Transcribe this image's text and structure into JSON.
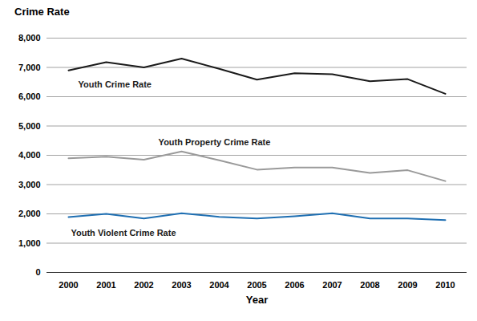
{
  "chart_data": {
    "type": "line",
    "title": "Crime Rate",
    "x_label": "Year",
    "categories": [
      "2000",
      "2001",
      "2002",
      "2003",
      "2004",
      "2005",
      "2006",
      "2007",
      "2008",
      "2009",
      "2010"
    ],
    "series": [
      {
        "name": "Youth Crime Rate",
        "color": "#1a1a1a",
        "values": [
          6900,
          7180,
          7000,
          7300,
          6950,
          6580,
          6800,
          6770,
          6530,
          6600,
          6100
        ]
      },
      {
        "name": "Youth Property Crime Rate",
        "color": "#9a9a9a",
        "values": [
          3900,
          3950,
          3850,
          4130,
          3830,
          3510,
          3580,
          3580,
          3400,
          3490,
          3120
        ]
      },
      {
        "name": "Youth Violent Crime Rate",
        "color": "#1f6fb2",
        "values": [
          1890,
          2000,
          1840,
          2020,
          1900,
          1840,
          1920,
          2020,
          1840,
          1840,
          1790
        ]
      }
    ],
    "ylim": [
      0,
      8000
    ],
    "yticks": [
      0,
      {
        "value": 1000,
        "label": "1,000"
      },
      {
        "value": 2000,
        "label": "2,000"
      },
      {
        "value": 3000,
        "label": "3,000"
      },
      {
        "value": 4000,
        "label": "4,000"
      },
      {
        "value": 5000,
        "label": "5,000"
      },
      {
        "value": 6000,
        "label": "6,000"
      },
      {
        "value": 7000,
        "label": "7,000"
      },
      {
        "value": 8000,
        "label": "8,000"
      }
    ],
    "grid": true
  }
}
